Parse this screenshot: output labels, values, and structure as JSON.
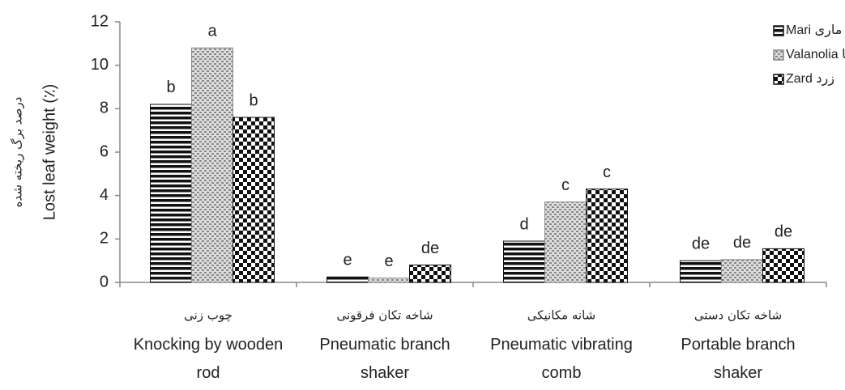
{
  "chart_data": {
    "type": "bar",
    "ylabel": "Lost leaf weight (٪)",
    "ylabel_fa": "درصد برگ ریخته شده",
    "categories": [
      "Knocking by wooden rod",
      "Pneumatic branch shaker",
      "Pneumatic vibrating comb",
      "Portable branch shaker"
    ],
    "categories_fa": [
      "چوب زنی",
      "شاخه تکان فرقونی",
      "شانه مکانیکی",
      "شاخه تکان دستی"
    ],
    "series": [
      {
        "name": "Mari ماری",
        "pattern": "horizontal-stripes",
        "color": "#111111",
        "values": [
          8.2,
          0.25,
          1.9,
          1.0
        ],
        "labels": [
          "b",
          "e",
          "d",
          "de"
        ]
      },
      {
        "name": "Valanolia والانولیا",
        "pattern": "dots",
        "color": "#888888",
        "values": [
          10.8,
          0.2,
          3.7,
          1.05
        ],
        "labels": [
          "a",
          "e",
          "c",
          "de"
        ]
      },
      {
        "name": "Zard زرد",
        "pattern": "checker",
        "color": "#111111",
        "values": [
          7.6,
          0.8,
          4.3,
          1.55
        ],
        "labels": [
          "b",
          "de",
          "c",
          "de"
        ]
      }
    ],
    "ylim": [
      0,
      12
    ],
    "yticks": [
      0,
      2,
      4,
      6,
      8,
      10,
      12
    ],
    "legend": "top-right"
  }
}
